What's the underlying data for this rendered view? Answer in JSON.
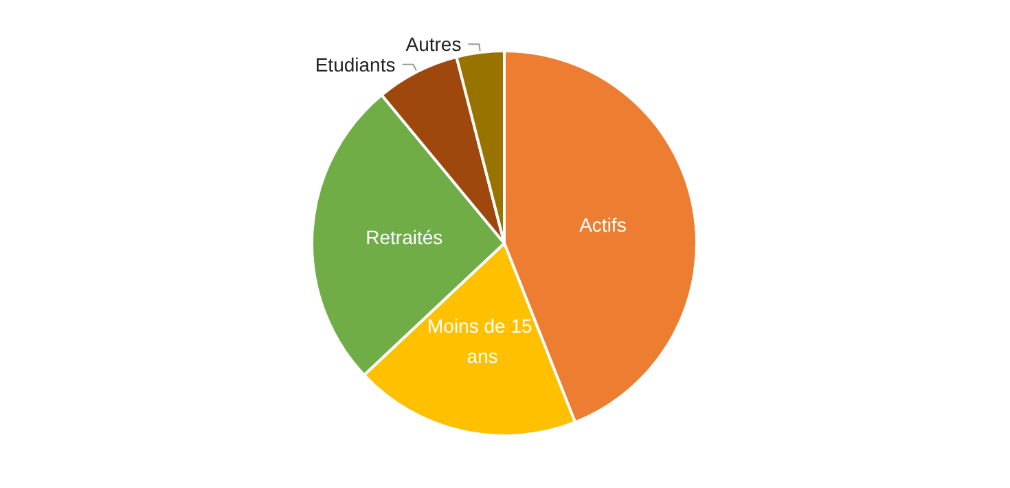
{
  "chart_data": {
    "type": "pie",
    "categories": [
      "Actifs",
      "Moins de 15 ans",
      "Retraités",
      "Etudiants",
      "Autres"
    ],
    "values": [
      44,
      19,
      26,
      7,
      4
    ],
    "colors": [
      "#ed7d31",
      "#ffc000",
      "#70ad47",
      "#9e480e",
      "#997300"
    ],
    "legend": false
  }
}
